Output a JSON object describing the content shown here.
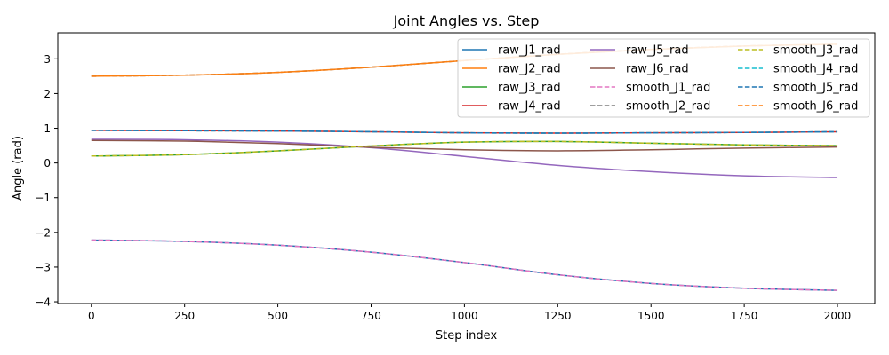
{
  "chart_data": {
    "type": "line",
    "title": "Joint Angles vs. Step",
    "xlabel": "Step index",
    "ylabel": "Angle (rad)",
    "xlim": [
      -90,
      2100
    ],
    "ylim": [
      -4.05,
      3.75
    ],
    "xticks": [
      0,
      250,
      500,
      750,
      1000,
      1250,
      1500,
      1750,
      2000
    ],
    "yticks": [
      -4,
      -3,
      -2,
      -1,
      0,
      1,
      2,
      3
    ],
    "grid": false,
    "legend": {
      "placement": "top-right",
      "columns": 3
    },
    "x": [
      0,
      250,
      500,
      750,
      1000,
      1250,
      1500,
      1750,
      2000
    ],
    "series": [
      {
        "name": "raw_J1_rad",
        "color": "#1f77b4",
        "dash": "solid",
        "values": [
          -2.22,
          -2.26,
          -2.37,
          -2.57,
          -2.87,
          -3.22,
          -3.47,
          -3.61,
          -3.67
        ]
      },
      {
        "name": "raw_J2_rad",
        "color": "#ff7f0e",
        "dash": "solid",
        "values": [
          2.5,
          2.53,
          2.61,
          2.76,
          2.95,
          3.13,
          3.27,
          3.37,
          3.42
        ]
      },
      {
        "name": "raw_J3_rad",
        "color": "#2ca02c",
        "dash": "solid",
        "values": [
          0.2,
          0.24,
          0.35,
          0.49,
          0.6,
          0.62,
          0.57,
          0.52,
          0.5
        ]
      },
      {
        "name": "raw_J4_rad",
        "color": "#d62728",
        "dash": "solid",
        "values": [
          0.94,
          0.93,
          0.92,
          0.9,
          0.87,
          0.86,
          0.87,
          0.88,
          0.9
        ]
      },
      {
        "name": "raw_J5_rad",
        "color": "#9467bd",
        "dash": "solid",
        "values": [
          0.68,
          0.67,
          0.6,
          0.44,
          0.19,
          -0.07,
          -0.25,
          -0.37,
          -0.42
        ]
      },
      {
        "name": "raw_J6_rad",
        "color": "#8c564b",
        "dash": "solid",
        "values": [
          0.65,
          0.63,
          0.56,
          0.45,
          0.38,
          0.35,
          0.38,
          0.43,
          0.46
        ]
      },
      {
        "name": "smooth_J1_rad",
        "color": "#e377c2",
        "dash": "dashed",
        "values": [
          -2.22,
          -2.26,
          -2.37,
          -2.57,
          -2.87,
          -3.22,
          -3.47,
          -3.61,
          -3.67
        ]
      },
      {
        "name": "smooth_J2_rad",
        "color": "#7f7f7f",
        "dash": "dashed",
        "values": [
          2.5,
          2.53,
          2.61,
          2.76,
          2.95,
          3.13,
          3.27,
          3.37,
          3.42
        ]
      },
      {
        "name": "smooth_J3_rad",
        "color": "#bcbd22",
        "dash": "dashed",
        "values": [
          0.2,
          0.24,
          0.35,
          0.49,
          0.6,
          0.62,
          0.57,
          0.52,
          0.5
        ]
      },
      {
        "name": "smooth_J4_rad",
        "color": "#17becf",
        "dash": "dashed",
        "values": [
          0.94,
          0.93,
          0.92,
          0.9,
          0.87,
          0.86,
          0.87,
          0.88,
          0.9
        ]
      },
      {
        "name": "smooth_J5_rad",
        "color": "#1f77b4",
        "dash": "dashed",
        "values": [
          0.94,
          0.93,
          0.92,
          0.9,
          0.87,
          0.86,
          0.87,
          0.88,
          0.9
        ]
      },
      {
        "name": "smooth_J6_rad",
        "color": "#ff7f0e",
        "dash": "dashed",
        "values": [
          2.5,
          2.53,
          2.61,
          2.76,
          2.95,
          3.13,
          3.27,
          3.37,
          3.42
        ]
      }
    ]
  }
}
